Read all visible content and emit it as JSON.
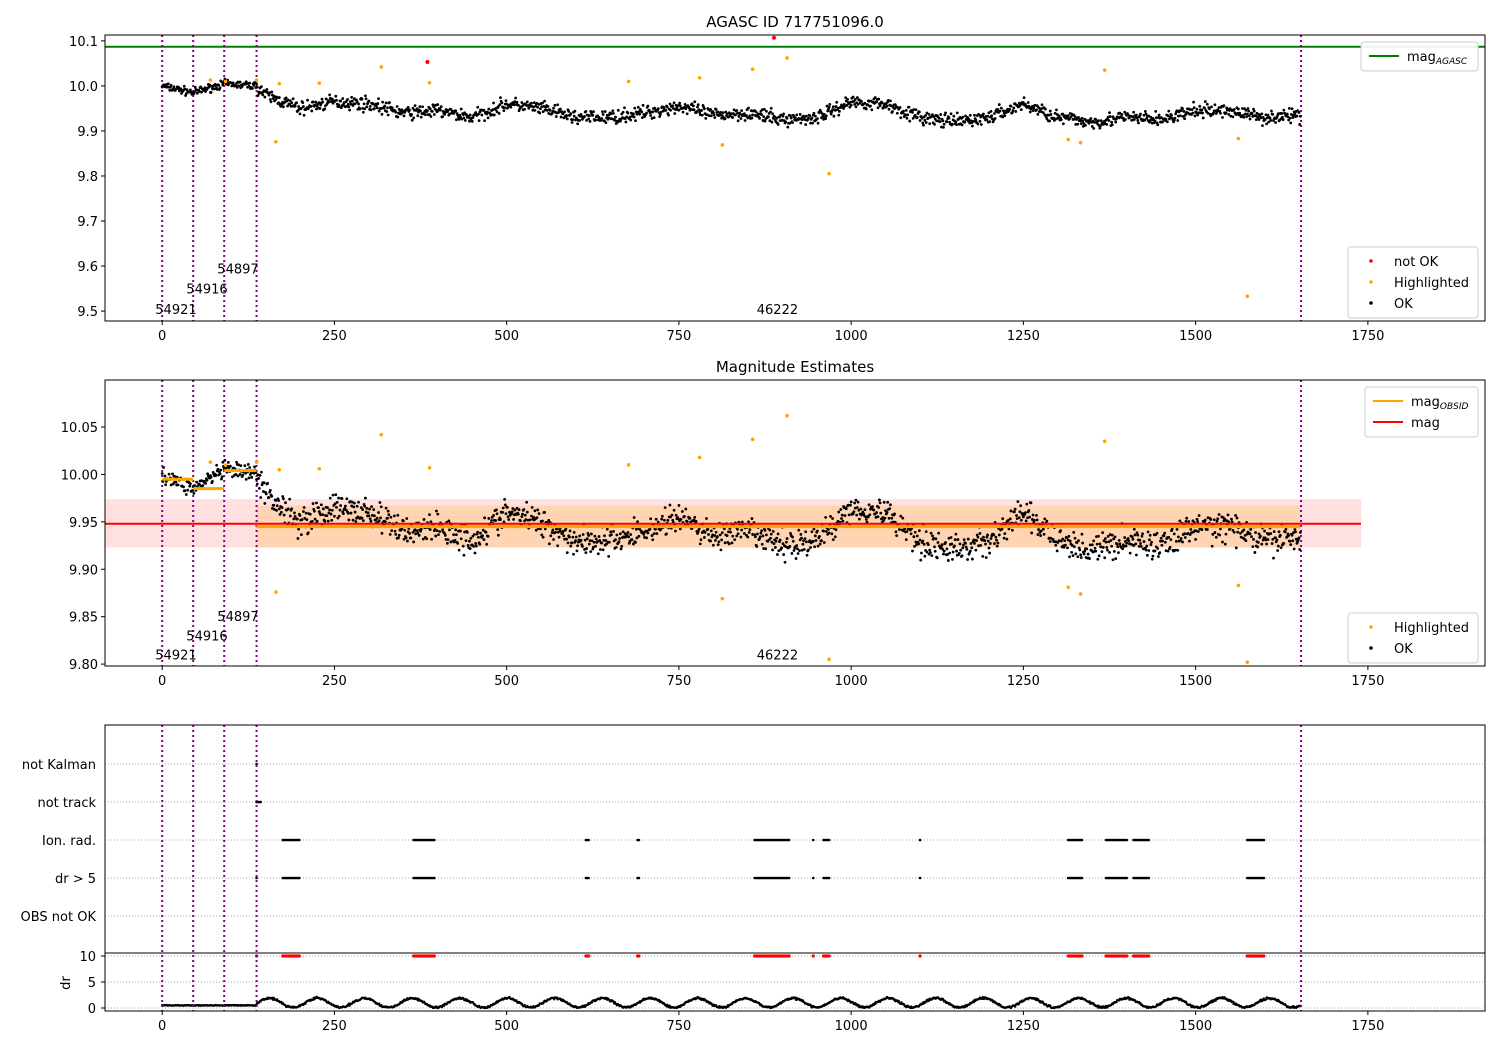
{
  "chart_data": [
    {
      "type": "scatter",
      "title": "AGASC ID 717751096.0",
      "xlim": [
        -83,
        1920
      ],
      "ylim": [
        9.478,
        10.113
      ],
      "xticks": [
        0,
        250,
        500,
        750,
        1000,
        1250,
        1500,
        1750
      ],
      "yticks": [
        9.5,
        9.6,
        9.7,
        9.8,
        9.9,
        10.0,
        10.1
      ],
      "mag_agasc": 10.087,
      "legend_top": {
        "line": "mag",
        "sub": "AGASC"
      },
      "legend_bottom": [
        "not OK",
        "Highlighted",
        "OK"
      ],
      "obs_boundaries": [
        0,
        45,
        90,
        137,
        1653
      ],
      "annotations": [
        {
          "text": "54921",
          "x": -10,
          "y": 9.505
        },
        {
          "text": "54916",
          "x": 35,
          "y": 9.55
        },
        {
          "text": "54897",
          "x": 80,
          "y": 9.595
        },
        {
          "text": "46222",
          "x": 863,
          "y": 9.505
        }
      ],
      "ok_trend": [
        [
          0,
          10.0
        ],
        [
          45,
          9.985
        ],
        [
          90,
          10.005
        ],
        [
          137,
          10.0
        ],
        [
          150,
          9.98
        ],
        [
          200,
          9.95
        ],
        [
          250,
          9.965
        ],
        [
          300,
          9.96
        ],
        [
          350,
          9.94
        ],
        [
          400,
          9.945
        ],
        [
          450,
          9.93
        ],
        [
          500,
          9.96
        ],
        [
          550,
          9.95
        ],
        [
          600,
          9.93
        ],
        [
          650,
          9.93
        ],
        [
          700,
          9.94
        ],
        [
          750,
          9.955
        ],
        [
          800,
          9.935
        ],
        [
          850,
          9.94
        ],
        [
          900,
          9.925
        ],
        [
          950,
          9.93
        ],
        [
          1000,
          9.965
        ],
        [
          1050,
          9.96
        ],
        [
          1100,
          9.93
        ],
        [
          1150,
          9.92
        ],
        [
          1200,
          9.93
        ],
        [
          1250,
          9.96
        ],
        [
          1300,
          9.93
        ],
        [
          1350,
          9.92
        ],
        [
          1400,
          9.93
        ],
        [
          1450,
          9.925
        ],
        [
          1500,
          9.945
        ],
        [
          1550,
          9.945
        ],
        [
          1600,
          9.93
        ],
        [
          1652,
          9.935
        ]
      ],
      "highlighted": [
        [
          70,
          10.013
        ],
        [
          92,
          10.01
        ],
        [
          137,
          10.013
        ],
        [
          165,
          9.876
        ],
        [
          170,
          10.005
        ],
        [
          228,
          10.006
        ],
        [
          318,
          10.042
        ],
        [
          388,
          10.007
        ],
        [
          677,
          10.01
        ],
        [
          780,
          10.018
        ],
        [
          813,
          9.869
        ],
        [
          857,
          10.037
        ],
        [
          907,
          10.062
        ],
        [
          968,
          9.805
        ],
        [
          1315,
          9.881
        ],
        [
          1333,
          9.874
        ],
        [
          1368,
          10.035
        ],
        [
          1562,
          9.883
        ],
        [
          1575,
          9.533
        ]
      ],
      "not_ok": [
        [
          385,
          10.053
        ],
        [
          888,
          10.107
        ]
      ]
    },
    {
      "type": "scatter",
      "title": "Magnitude Estimates",
      "xlim": [
        -83,
        1920
      ],
      "ylim": [
        9.798,
        10.0996
      ],
      "xticks": [
        0,
        250,
        500,
        750,
        1000,
        1250,
        1500,
        1750
      ],
      "yticks": [
        9.8,
        9.85,
        9.9,
        9.95,
        10.0,
        10.05
      ],
      "mag": 9.948,
      "mag_band": [
        9.923,
        9.974
      ],
      "mag_extent": [
        -83,
        1740
      ],
      "mag_obsid": [
        [
          0,
          45,
          9.995
        ],
        [
          45,
          90,
          9.985
        ],
        [
          90,
          137,
          10.004
        ],
        [
          137,
          1652,
          9.945
        ]
      ],
      "mag_obsid_band": [
        9.923,
        9.967
      ],
      "legend_top": [
        {
          "line": "mag",
          "sub": "OBSID"
        },
        {
          "line": "mag",
          "sub": ""
        }
      ],
      "legend_bottom": [
        "Highlighted",
        "OK"
      ]
    },
    {
      "type": "scatter",
      "xlim": [
        -83,
        1920
      ],
      "xticks": [
        0,
        250,
        500,
        750,
        1000,
        1250,
        1500,
        1750
      ],
      "flag_labels": [
        "not Kalman",
        "not track",
        "Ion. rad.",
        "dr > 5",
        "OBS not OK"
      ],
      "flags": {
        "not Kalman": [
          [
            137,
            138
          ]
        ],
        "not track": [
          [
            137,
            143
          ]
        ],
        "Ion. rad.": [
          [
            175,
            200
          ],
          [
            365,
            395
          ],
          [
            615,
            620
          ],
          [
            690,
            692
          ],
          [
            860,
            910
          ],
          [
            945,
            946
          ],
          [
            960,
            968
          ],
          [
            1100,
            1101
          ],
          [
            1315,
            1335
          ],
          [
            1370,
            1400
          ],
          [
            1410,
            1432
          ],
          [
            1575,
            1600
          ]
        ],
        "dr > 5": [
          [
            137,
            138
          ],
          [
            175,
            200
          ],
          [
            365,
            395
          ],
          [
            615,
            620
          ],
          [
            690,
            692
          ],
          [
            860,
            910
          ],
          [
            945,
            946
          ],
          [
            960,
            968
          ],
          [
            1100,
            1101
          ],
          [
            1315,
            1335
          ],
          [
            1370,
            1400
          ],
          [
            1410,
            1432
          ],
          [
            1575,
            1600
          ]
        ],
        "OBS not OK": []
      },
      "dr_ylabel": "dr",
      "dr_yticks": [
        0,
        5,
        10
      ],
      "dr_ylim": [
        -0.6,
        10.6
      ]
    }
  ]
}
